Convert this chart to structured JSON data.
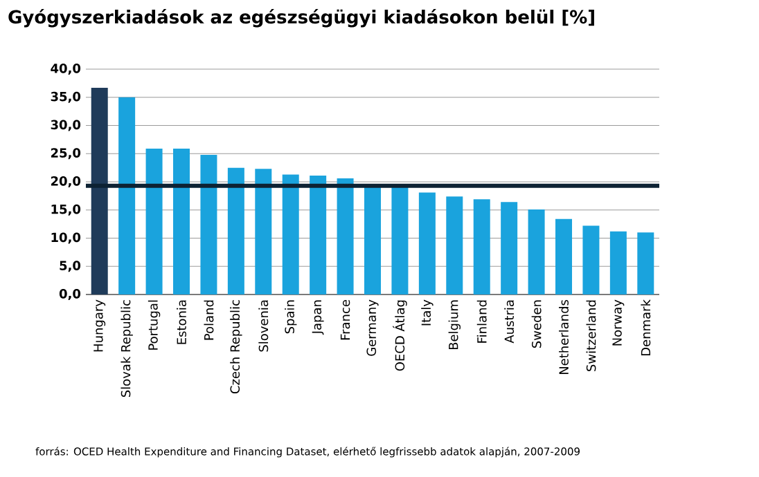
{
  "chart_data": {
    "type": "bar",
    "title": "Gyógyszerkiadások az egészségügyi kiadásokon belül [%]",
    "categories": [
      "Hungary",
      "Slovak Republic",
      "Portugal",
      "Estonia",
      "Poland",
      "Czech Republic",
      "Slovenia",
      "Spain",
      "Japan",
      "France",
      "Germany",
      "OECD Átlag",
      "Italy",
      "Belgium",
      "Finland",
      "Austria",
      "Sweden",
      "Netherlands",
      "Switzerland",
      "Norway",
      "Denmark"
    ],
    "values": [
      36.7,
      35.0,
      25.9,
      25.9,
      24.8,
      22.5,
      22.3,
      21.3,
      21.1,
      20.6,
      19.5,
      19.3,
      18.1,
      17.4,
      16.9,
      16.4,
      15.1,
      13.4,
      12.2,
      11.2,
      11.0
    ],
    "colors": [
      "#1f3b5a",
      "#1aa3dd",
      "#1aa3dd",
      "#1aa3dd",
      "#1aa3dd",
      "#1aa3dd",
      "#1aa3dd",
      "#1aa3dd",
      "#1aa3dd",
      "#1aa3dd",
      "#1aa3dd",
      "#1aa3dd",
      "#1aa3dd",
      "#1aa3dd",
      "#1aa3dd",
      "#1aa3dd",
      "#1aa3dd",
      "#1aa3dd",
      "#1aa3dd",
      "#1aa3dd",
      "#1aa3dd"
    ],
    "ylim": [
      0,
      40
    ],
    "yticks": [
      {
        "value": 0,
        "label": "0,0"
      },
      {
        "value": 5,
        "label": "5,0"
      },
      {
        "value": 10,
        "label": "10,0"
      },
      {
        "value": 15,
        "label": "15,0"
      },
      {
        "value": 20,
        "label": "20,0"
      },
      {
        "value": 25,
        "label": "25,0"
      },
      {
        "value": 30,
        "label": "30,0"
      },
      {
        "value": 35,
        "label": "35,0"
      },
      {
        "value": 40,
        "label": "40,0"
      }
    ],
    "grid": "y",
    "ref_lines": [
      {
        "axis": "y",
        "value": 19.3,
        "color": "#0d2233"
      }
    ],
    "annotations": [
      "forrás: OCED Health Expenditure and Financing Dataset, elérhető legfrissebb adatok alapján, 2007-2009"
    ]
  }
}
